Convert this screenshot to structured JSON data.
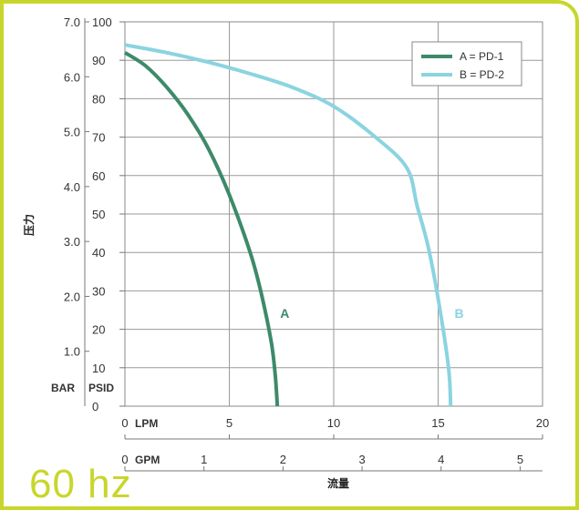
{
  "chart_data": {
    "type": "line",
    "xlabel": "流量",
    "ylabel": "压力",
    "x_axes": [
      {
        "unit": "LPM",
        "ticks": [
          "0",
          "5",
          "10",
          "15",
          "20"
        ],
        "range": [
          0,
          20
        ]
      },
      {
        "unit": "GPM",
        "ticks": [
          "0",
          "1",
          "2",
          "3",
          "4",
          "5"
        ],
        "range": [
          0,
          5.2834
        ]
      }
    ],
    "y_axes": [
      {
        "unit": "BAR",
        "ticks": [
          "1.0",
          "2.0",
          "3.0",
          "4.0",
          "5.0",
          "6.0",
          "7.0"
        ],
        "range": [
          0,
          7.0
        ]
      },
      {
        "unit": "PSID",
        "ticks": [
          "0",
          "10",
          "20",
          "30",
          "40",
          "50",
          "60",
          "70",
          "80",
          "90",
          "100"
        ],
        "range": [
          0,
          100
        ]
      }
    ],
    "grid": true,
    "legend_position": "top-right",
    "series": [
      {
        "name": "A = PD-1",
        "label": "A",
        "color": "#3d8a6a",
        "x_lpm": [
          0,
          1,
          2,
          3,
          4,
          5,
          6,
          6.5,
          7,
          7.2,
          7.3
        ],
        "y_psid": [
          92,
          88.5,
          83,
          76,
          67,
          55,
          40,
          30,
          17,
          8,
          0
        ]
      },
      {
        "name": "B = PD-2",
        "label": "B",
        "color": "#8ad4e0",
        "x_lpm": [
          0,
          2,
          4,
          6,
          8,
          10,
          12,
          13.5,
          14,
          14.5,
          15,
          15.5,
          15.6
        ],
        "y_psid": [
          94,
          92,
          89.5,
          86.5,
          83,
          78,
          70,
          62,
          52,
          42,
          28,
          10,
          0
        ]
      }
    ]
  },
  "footer": {
    "frequency_label": "60 hz"
  }
}
